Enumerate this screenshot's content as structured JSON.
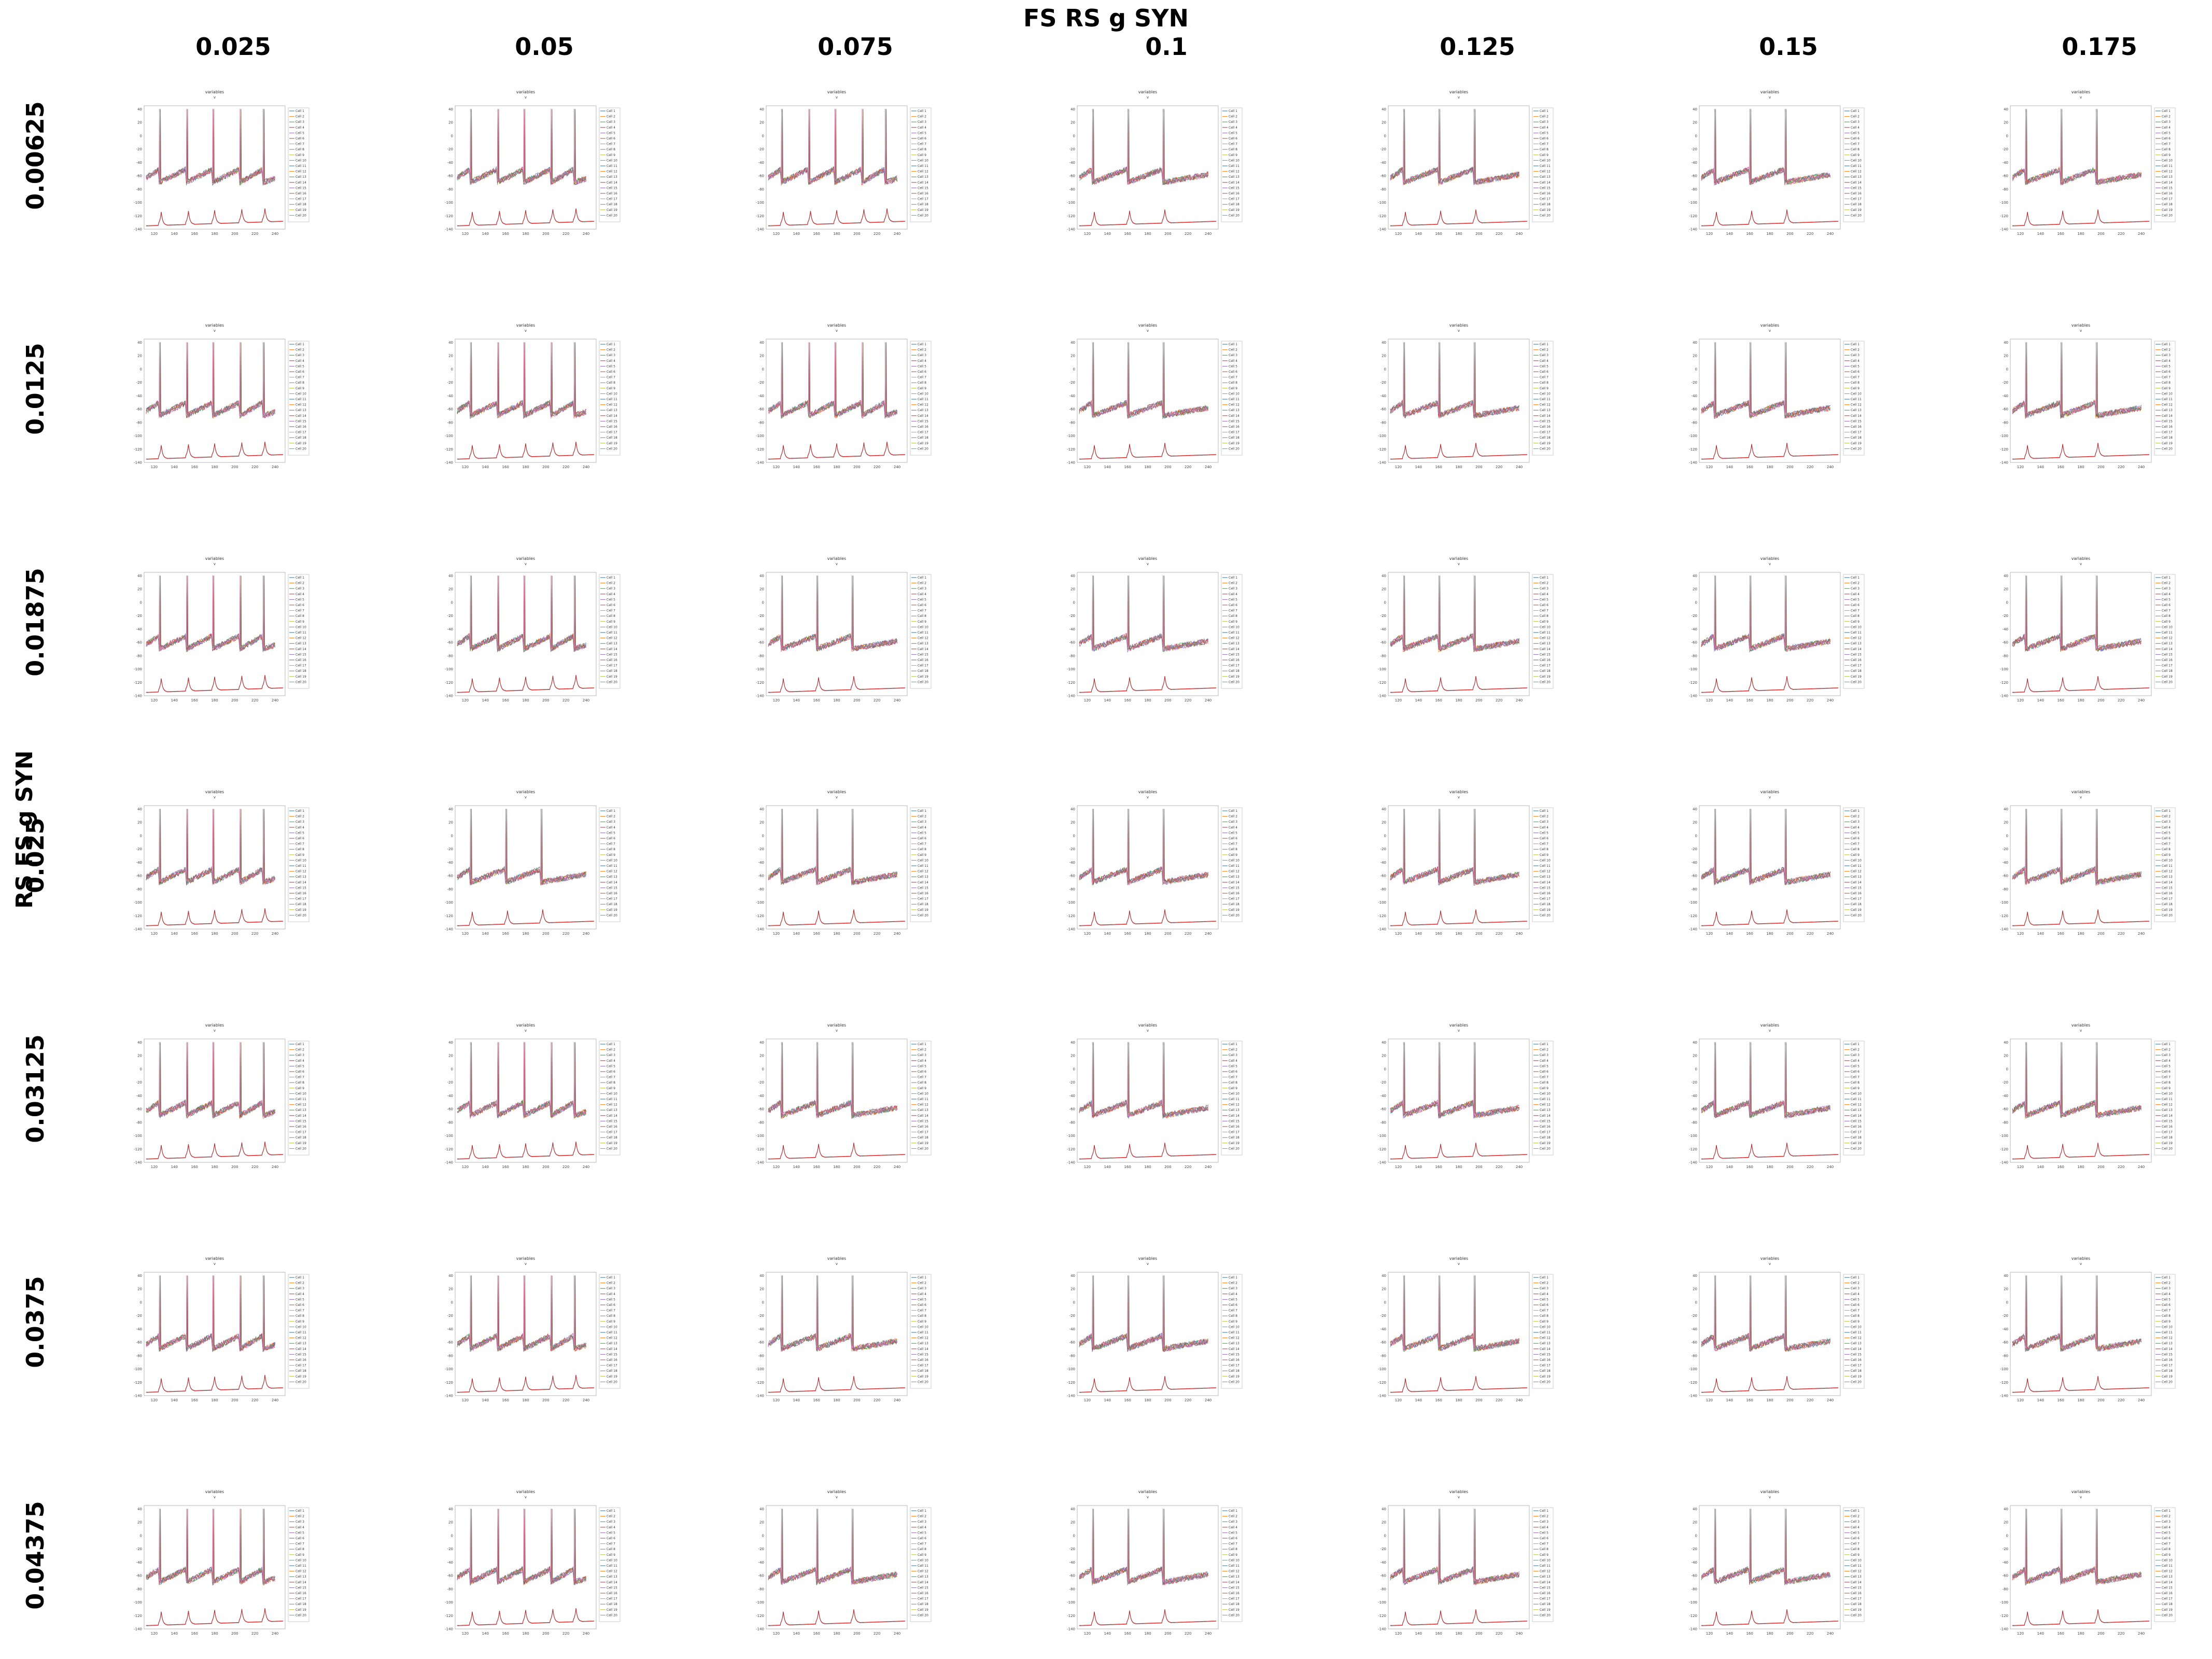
{
  "page_title": "FS RS g SYN",
  "row_axis_title": "RS FS g SYN",
  "column_values": [
    "0.025",
    "0.05",
    "0.075",
    "0.1",
    "0.125",
    "0.15",
    "0.175"
  ],
  "row_values": [
    "0.00625",
    "0.0125",
    "0.01875",
    "0.025",
    "0.03125",
    "0.0375",
    "0.04375"
  ],
  "panel": {
    "title": "variables",
    "subtitle": "v",
    "x_ticks": [
      "120",
      "140",
      "160",
      "180",
      "200",
      "220",
      "240"
    ],
    "y_ticks": [
      "40",
      "20",
      "0",
      "-20",
      "-40",
      "-60",
      "-80",
      "-100",
      "-120",
      "-140"
    ],
    "legend_entries": [
      "Cell 1",
      "Cell 2",
      "Cell 3",
      "Cell 4",
      "Cell 5",
      "Cell 6",
      "Cell 7",
      "Cell 8",
      "Cell 9",
      "Cell 10",
      "Cell 11",
      "Cell 12",
      "Cell 13",
      "Cell 14",
      "Cell 15",
      "Cell 16",
      "Cell 17",
      "Cell 18",
      "Cell 19",
      "Cell 20"
    ]
  },
  "colors": {
    "trace_palette": [
      "#1f77b4",
      "#ff7f0e",
      "#2ca02c",
      "#d62728",
      "#9467bd",
      "#8c564b",
      "#e377c2",
      "#7f7f7f",
      "#bcbd22",
      "#17becf"
    ],
    "lower_trace": "#d62728",
    "lower_trace_dark": "#555555"
  },
  "chart_data": {
    "type": "line",
    "layout": "7x7 small-multiples grid of membrane-voltage traces",
    "x_range": [
      110,
      250
    ],
    "y_range": [
      -140,
      45
    ],
    "rows": [
      {
        "row_value": "0.00625",
        "spike_times": [
          [
            125,
            152,
            178,
            205,
            228
          ],
          [
            125,
            152,
            178,
            205,
            228
          ],
          [
            125,
            152,
            178,
            205,
            228
          ],
          [
            125,
            160,
            195
          ],
          [
            125,
            160,
            195
          ],
          [
            125,
            160,
            195
          ],
          [
            125,
            160,
            195
          ]
        ]
      },
      {
        "row_value": "0.0125",
        "spike_times": [
          [
            125,
            152,
            178,
            205,
            228
          ],
          [
            125,
            152,
            178,
            205,
            228
          ],
          [
            125,
            152,
            178,
            205,
            228
          ],
          [
            125,
            160,
            195
          ],
          [
            125,
            160,
            195
          ],
          [
            125,
            160,
            195
          ],
          [
            125,
            160,
            195
          ]
        ]
      },
      {
        "row_value": "0.01875",
        "spike_times": [
          [
            125,
            152,
            178,
            205,
            228
          ],
          [
            125,
            152,
            178,
            205,
            228
          ],
          [
            125,
            160,
            195
          ],
          [
            125,
            160,
            195
          ],
          [
            125,
            160,
            195
          ],
          [
            125,
            160,
            195
          ],
          [
            125,
            160,
            195
          ]
        ]
      },
      {
        "row_value": "0.025",
        "spike_times": [
          [
            125,
            152,
            178,
            205,
            228
          ],
          [
            125,
            160,
            195
          ],
          [
            125,
            160,
            195
          ],
          [
            125,
            160,
            195
          ],
          [
            125,
            160,
            195
          ],
          [
            125,
            160,
            195
          ],
          [
            125,
            160,
            195
          ]
        ]
      },
      {
        "row_value": "0.03125",
        "spike_times": [
          [
            125,
            152,
            178,
            205,
            228
          ],
          [
            125,
            152,
            178,
            205,
            228
          ],
          [
            125,
            160,
            195
          ],
          [
            125,
            160,
            195
          ],
          [
            125,
            160,
            195
          ],
          [
            125,
            160,
            195
          ],
          [
            125,
            160,
            195
          ]
        ]
      },
      {
        "row_value": "0.0375",
        "spike_times": [
          [
            125,
            152,
            178,
            205,
            228
          ],
          [
            125,
            152,
            178,
            205,
            228
          ],
          [
            125,
            160,
            195
          ],
          [
            125,
            160,
            195
          ],
          [
            125,
            160,
            195
          ],
          [
            125,
            160,
            195
          ],
          [
            125,
            160,
            195
          ]
        ]
      },
      {
        "row_value": "0.04375",
        "spike_times": [
          [
            125,
            152,
            178,
            205,
            228
          ],
          [
            125,
            152,
            178,
            205,
            228
          ],
          [
            125,
            160,
            195
          ],
          [
            125,
            160,
            195
          ],
          [
            125,
            160,
            195
          ],
          [
            125,
            160,
            195
          ],
          [
            125,
            160,
            195
          ]
        ]
      }
    ],
    "series": [
      {
        "name": "Cell 1"
      },
      {
        "name": "Cell 2"
      },
      {
        "name": "Cell 3"
      },
      {
        "name": "Cell 4"
      },
      {
        "name": "Cell 5"
      },
      {
        "name": "Cell 6"
      },
      {
        "name": "Cell 7"
      },
      {
        "name": "Cell 8"
      },
      {
        "name": "Cell 9"
      },
      {
        "name": "Cell 10"
      },
      {
        "name": "Cell 11"
      },
      {
        "name": "Cell 12"
      },
      {
        "name": "Cell 13"
      },
      {
        "name": "Cell 14"
      },
      {
        "name": "Cell 15"
      },
      {
        "name": "Cell 16"
      },
      {
        "name": "Cell 17"
      },
      {
        "name": "Cell 18"
      },
      {
        "name": "Cell 19"
      },
      {
        "name": "Cell 20"
      }
    ],
    "spike_peak": 40,
    "baseline_start": -60,
    "baseline_end": -50,
    "trough": -70,
    "lower_trace_baseline": -135,
    "lower_trace_peak": -115
  }
}
